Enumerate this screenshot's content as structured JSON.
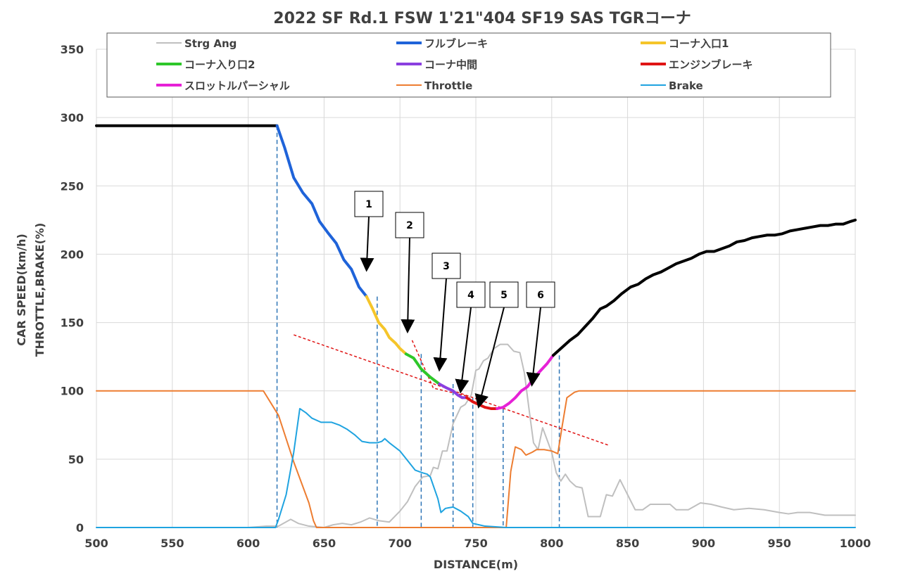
{
  "chart_data": {
    "type": "line",
    "title": "2022 SF Rd.1 FSW 1'21\"404 SF19 SAS TGRコーナ",
    "xlabel": "DISTANCE(m)",
    "ylabel_line1": "CAR SPEED(km/h)",
    "ylabel_line2": "THROTTLE,BRAKE(%)",
    "xlim": [
      500,
      1000
    ],
    "ylim": [
      0,
      350
    ],
    "x_ticks": [
      500,
      550,
      600,
      650,
      700,
      750,
      800,
      850,
      900,
      950,
      1000
    ],
    "y_ticks": [
      0,
      50,
      100,
      150,
      200,
      250,
      300,
      350
    ],
    "grid": true,
    "legend_position": "top",
    "series": [
      {
        "name": "Strg Ang",
        "color": "#bfbfbf",
        "width": 2,
        "points": [
          [
            500,
            0
          ],
          [
            600,
            0
          ],
          [
            612,
            1
          ],
          [
            620,
            1
          ],
          [
            628,
            6
          ],
          [
            633,
            3
          ],
          [
            640,
            1
          ],
          [
            650,
            0
          ],
          [
            656,
            2
          ],
          [
            662,
            3
          ],
          [
            668,
            2
          ],
          [
            674,
            4
          ],
          [
            680,
            7
          ],
          [
            686,
            5
          ],
          [
            693,
            4
          ],
          [
            700,
            12
          ],
          [
            705,
            19
          ],
          [
            710,
            30
          ],
          [
            715,
            37
          ],
          [
            720,
            38
          ],
          [
            722,
            44
          ],
          [
            725,
            43
          ],
          [
            728,
            56
          ],
          [
            731,
            56
          ],
          [
            735,
            76
          ],
          [
            740,
            88
          ],
          [
            743,
            90
          ],
          [
            747,
            97
          ],
          [
            750,
            115
          ],
          [
            752,
            116
          ],
          [
            755,
            122
          ],
          [
            758,
            124
          ],
          [
            762,
            131
          ],
          [
            766,
            134
          ],
          [
            771,
            134
          ],
          [
            775,
            129
          ],
          [
            779,
            128
          ],
          [
            782,
            113
          ],
          [
            785,
            87
          ],
          [
            788,
            62
          ],
          [
            791,
            57
          ],
          [
            794,
            73
          ],
          [
            797,
            64
          ],
          [
            800,
            55
          ],
          [
            803,
            40
          ],
          [
            806,
            34
          ],
          [
            809,
            39
          ],
          [
            812,
            34
          ],
          [
            816,
            30
          ],
          [
            820,
            29
          ],
          [
            824,
            8
          ],
          [
            828,
            8
          ],
          [
            832,
            8
          ],
          [
            836,
            24
          ],
          [
            840,
            23
          ],
          [
            845,
            35
          ],
          [
            850,
            24
          ],
          [
            855,
            13
          ],
          [
            860,
            13
          ],
          [
            865,
            17
          ],
          [
            870,
            17
          ],
          [
            878,
            17
          ],
          [
            882,
            13
          ],
          [
            890,
            13
          ],
          [
            898,
            18
          ],
          [
            905,
            17
          ],
          [
            912,
            15
          ],
          [
            920,
            13
          ],
          [
            930,
            14
          ],
          [
            940,
            13
          ],
          [
            950,
            11
          ],
          [
            956,
            10
          ],
          [
            962,
            11
          ],
          [
            970,
            11
          ],
          [
            980,
            9
          ],
          [
            990,
            9
          ],
          [
            1000,
            9
          ]
        ]
      },
      {
        "name": "Throttle",
        "color": "#ed7d31",
        "width": 2,
        "points": [
          [
            500,
            100
          ],
          [
            610,
            100
          ],
          [
            620,
            82
          ],
          [
            630,
            48
          ],
          [
            640,
            18
          ],
          [
            643,
            5
          ],
          [
            645,
            0
          ],
          [
            700,
            0
          ],
          [
            770,
            0
          ],
          [
            773,
            41
          ],
          [
            776,
            59
          ],
          [
            780,
            57
          ],
          [
            783,
            53
          ],
          [
            787,
            55
          ],
          [
            790,
            57
          ],
          [
            795,
            57
          ],
          [
            800,
            56
          ],
          [
            804,
            54
          ],
          [
            807,
            75
          ],
          [
            810,
            95
          ],
          [
            815,
            99
          ],
          [
            818,
            100
          ],
          [
            1000,
            100
          ]
        ]
      },
      {
        "name": "Brake",
        "color": "#1fa3e0",
        "width": 2,
        "points": [
          [
            500,
            0
          ],
          [
            618,
            0
          ],
          [
            620,
            6
          ],
          [
            625,
            24
          ],
          [
            630,
            55
          ],
          [
            634,
            87
          ],
          [
            638,
            84
          ],
          [
            642,
            80
          ],
          [
            648,
            77
          ],
          [
            655,
            77
          ],
          [
            660,
            75
          ],
          [
            665,
            72
          ],
          [
            670,
            68
          ],
          [
            675,
            63
          ],
          [
            680,
            62
          ],
          [
            685,
            62
          ],
          [
            688,
            63
          ],
          [
            690,
            65
          ],
          [
            693,
            62
          ],
          [
            700,
            56
          ],
          [
            705,
            49
          ],
          [
            710,
            42
          ],
          [
            715,
            40
          ],
          [
            718,
            39
          ],
          [
            720,
            37
          ],
          [
            725,
            21
          ],
          [
            727,
            11
          ],
          [
            730,
            14
          ],
          [
            735,
            15
          ],
          [
            740,
            12
          ],
          [
            745,
            8
          ],
          [
            748,
            3
          ],
          [
            752,
            2
          ],
          [
            756,
            1
          ],
          [
            770,
            0
          ],
          [
            1000,
            0
          ]
        ]
      },
      {
        "name": "",
        "color": "#000000",
        "width": 4,
        "points": [
          [
            500,
            294
          ],
          [
            619,
            294
          ]
        ]
      },
      {
        "name": "フルブレーキ",
        "color": "#1f63d9",
        "width": 4,
        "points": [
          [
            619,
            294
          ],
          [
            624,
            278
          ],
          [
            630,
            256
          ],
          [
            636,
            245
          ],
          [
            642,
            237
          ],
          [
            647,
            224
          ],
          [
            653,
            215
          ],
          [
            658,
            208
          ],
          [
            663,
            196
          ],
          [
            668,
            189
          ],
          [
            673,
            176
          ],
          [
            678,
            169
          ]
        ]
      },
      {
        "name": "コーナ入口1",
        "color": "#f5c52a",
        "width": 4,
        "points": [
          [
            678,
            169
          ],
          [
            682,
            160
          ],
          [
            686,
            150
          ],
          [
            690,
            145
          ],
          [
            693,
            139
          ],
          [
            697,
            135
          ],
          [
            700,
            131
          ],
          [
            704,
            127
          ]
        ]
      },
      {
        "name": "コーナ入り口2",
        "color": "#2ec72a",
        "width": 4,
        "points": [
          [
            704,
            127
          ],
          [
            709,
            124
          ],
          [
            714,
            116
          ],
          [
            720,
            110
          ],
          [
            726,
            105
          ]
        ]
      },
      {
        "name": "コーナ中間",
        "color": "#8b3fe0",
        "width": 4,
        "points": [
          [
            726,
            105
          ],
          [
            731,
            102
          ],
          [
            735,
            100
          ],
          [
            738,
            97
          ],
          [
            741,
            95
          ],
          [
            744,
            95
          ]
        ]
      },
      {
        "name": "エンジンブレーキ",
        "color": "#e01414",
        "width": 4,
        "points": [
          [
            744,
            95
          ],
          [
            748,
            92
          ],
          [
            752,
            90
          ],
          [
            756,
            88
          ],
          [
            760,
            87
          ],
          [
            764,
            87
          ]
        ]
      },
      {
        "name": "スロットルパーシャル",
        "color": "#e621d6",
        "width": 4,
        "points": [
          [
            764,
            87
          ],
          [
            768,
            88
          ],
          [
            772,
            91
          ],
          [
            776,
            95
          ],
          [
            780,
            100
          ],
          [
            784,
            103
          ],
          [
            788,
            109
          ],
          [
            792,
            114
          ],
          [
            797,
            120
          ],
          [
            801,
            126
          ]
        ]
      },
      {
        "name": "",
        "color": "#000000",
        "width": 4,
        "points": [
          [
            801,
            126
          ],
          [
            806,
            131
          ],
          [
            812,
            137
          ],
          [
            817,
            141
          ],
          [
            822,
            147
          ],
          [
            827,
            153
          ],
          [
            832,
            160
          ],
          [
            836,
            162
          ],
          [
            841,
            166
          ],
          [
            846,
            171
          ],
          [
            852,
            176
          ],
          [
            857,
            178
          ],
          [
            862,
            182
          ],
          [
            867,
            185
          ],
          [
            872,
            187
          ],
          [
            877,
            190
          ],
          [
            882,
            193
          ],
          [
            887,
            195
          ],
          [
            892,
            197
          ],
          [
            897,
            200
          ],
          [
            902,
            202
          ],
          [
            907,
            202
          ],
          [
            912,
            204
          ],
          [
            917,
            206
          ],
          [
            922,
            209
          ],
          [
            927,
            210
          ],
          [
            932,
            212
          ],
          [
            937,
            213
          ],
          [
            942,
            214
          ],
          [
            947,
            214
          ],
          [
            952,
            215
          ],
          [
            957,
            217
          ],
          [
            962,
            218
          ],
          [
            967,
            219
          ],
          [
            972,
            220
          ],
          [
            977,
            221
          ],
          [
            982,
            221
          ],
          [
            987,
            222
          ],
          [
            992,
            222
          ],
          [
            997,
            224
          ],
          [
            1000,
            225
          ]
        ]
      }
    ],
    "legend": [
      {
        "name": "Strg Ang",
        "color": "#bfbfbf"
      },
      {
        "name": "フルブレーキ",
        "color": "#1f63d9"
      },
      {
        "name": "コーナ入口1",
        "color": "#f5c52a"
      },
      {
        "name": "コーナ入り口2",
        "color": "#2ec72a"
      },
      {
        "name": "コーナ中間",
        "color": "#8b3fe0"
      },
      {
        "name": "エンジンブレーキ",
        "color": "#e01414"
      },
      {
        "name": "スロットルパーシャル",
        "color": "#e621d6"
      },
      {
        "name": "Throttle",
        "color": "#ed7d31"
      },
      {
        "name": "Brake",
        "color": "#1fa3e0"
      }
    ],
    "vertical_markers_x": [
      619,
      685,
      714,
      735,
      748,
      768,
      805
    ],
    "trend_lines": [
      {
        "color": "#e01414",
        "points": [
          [
            630,
            141
          ],
          [
            838,
            60
          ]
        ]
      },
      {
        "color": "#e01414",
        "points": [
          [
            708,
            137
          ],
          [
            722,
            102
          ],
          [
            745,
            96
          ]
        ]
      }
    ],
    "callouts": [
      {
        "label": "1",
        "target": [
          678,
          187
        ]
      },
      {
        "label": "2",
        "target": [
          705,
          142
        ]
      },
      {
        "label": "3",
        "target": [
          726,
          114
        ]
      },
      {
        "label": "4",
        "target": [
          740,
          98
        ]
      },
      {
        "label": "5",
        "target": [
          752,
          87
        ]
      },
      {
        "label": "6",
        "target": [
          787,
          103
        ]
      }
    ]
  }
}
